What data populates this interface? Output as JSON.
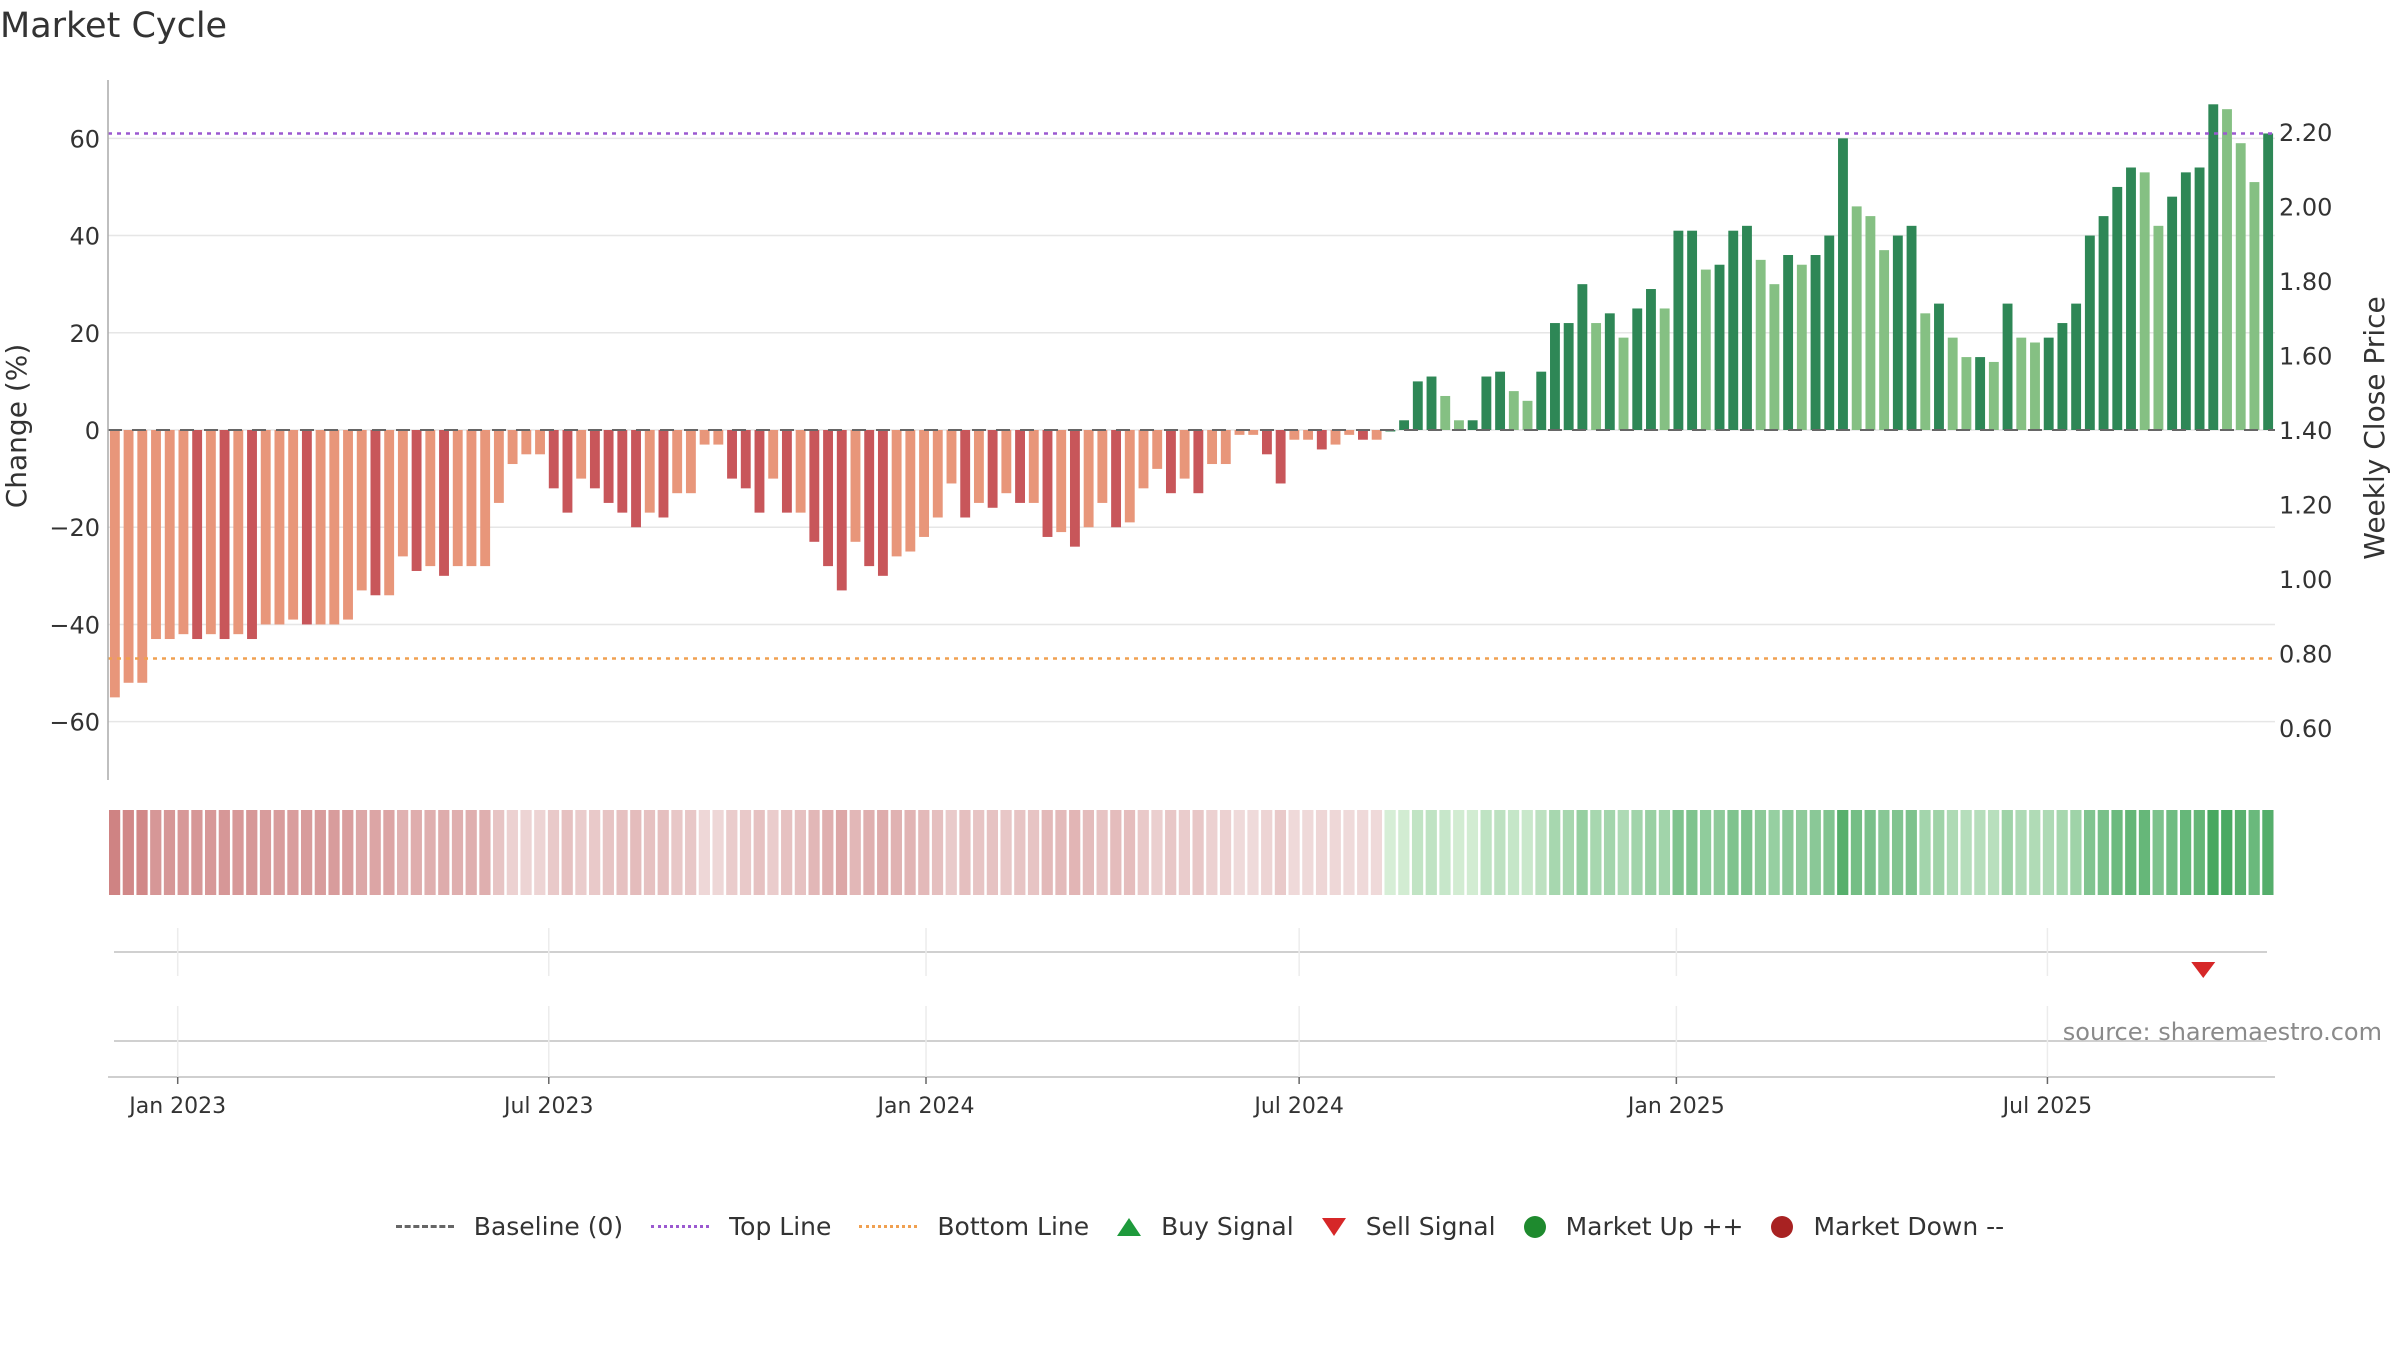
{
  "title": "Market Cycle",
  "source_text": "source: sharemaestro.com",
  "colors": {
    "bar_down_dark": "#c8565a",
    "bar_down_light": "#e8967a",
    "bar_up_dark": "#2e8756",
    "bar_up_light": "#85c083",
    "top_line": "#9b59d0",
    "bottom_line": "#f0a050",
    "buy": "#1e9a3c",
    "sell": "#d62728",
    "market_up": "#1e8a2e",
    "market_down": "#a82222"
  },
  "legend": [
    {
      "key": "baseline",
      "label": "Baseline (0)",
      "color": "#666666"
    },
    {
      "key": "top",
      "label": "Top Line",
      "color": "#9b59d0"
    },
    {
      "key": "bottom",
      "label": "Bottom Line",
      "color": "#f0a050"
    },
    {
      "key": "buy",
      "label": "Buy Signal",
      "color": "#1e9a3c"
    },
    {
      "key": "sell",
      "label": "Sell Signal",
      "color": "#d62728"
    },
    {
      "key": "up",
      "label": "Market Up ++",
      "color": "#1e8a2e"
    },
    {
      "key": "down",
      "label": "Market Down --",
      "color": "#a82222"
    }
  ],
  "chart_data": {
    "type": "bar",
    "ylabel": "Change (%)",
    "y2label": "Weekly Close Price",
    "ylim": [
      -72,
      72
    ],
    "yticks": [
      60,
      40,
      20,
      0,
      -20,
      -40,
      -60
    ],
    "ytick_labels": [
      "60",
      "40",
      "20",
      "0",
      "−20",
      "−40",
      "−60"
    ],
    "y2lim": [
      0.46,
      2.34
    ],
    "y2ticks": [
      2.2,
      2.0,
      1.8,
      1.6,
      1.4,
      1.2,
      1.0,
      0.8,
      0.6
    ],
    "y2tick_labels": [
      "2.20",
      "2.00",
      "1.80",
      "1.60",
      "1.40",
      "1.20",
      "1.00",
      "0.80",
      "0.60"
    ],
    "top_line": 61,
    "bottom_line": -47,
    "x_start": "2022-11-28",
    "x_end": "2025-10-20",
    "xticks": [
      {
        "date": "2023-01-01",
        "label": "Jan 2023"
      },
      {
        "date": "2023-07-01",
        "label": "Jul 2023"
      },
      {
        "date": "2024-01-01",
        "label": "Jan 2024"
      },
      {
        "date": "2024-07-01",
        "label": "Jul 2024"
      },
      {
        "date": "2025-01-01",
        "label": "Jan 2025"
      },
      {
        "date": "2025-07-01",
        "label": "Jul 2025"
      }
    ],
    "first_week": "2022-11-28",
    "values": [
      -55,
      -52,
      -52,
      -43,
      -43,
      -42,
      -43,
      -42,
      -43,
      -42,
      -43,
      -40,
      -40,
      -39,
      -40,
      -40,
      -40,
      -39,
      -33,
      -34,
      -34,
      -26,
      -29,
      -28,
      -30,
      -28,
      -28,
      -28,
      -15,
      -7,
      -5,
      -5,
      -12,
      -17,
      -10,
      -12,
      -15,
      -17,
      -20,
      -17,
      -18,
      -13,
      -13,
      -3,
      -3,
      -10,
      -12,
      -17,
      -10,
      -17,
      -17,
      -23,
      -28,
      -33,
      -23,
      -28,
      -30,
      -26,
      -25,
      -22,
      -18,
      -11,
      -18,
      -15,
      -16,
      -13,
      -15,
      -15,
      -22,
      -21,
      -24,
      -20,
      -15,
      -20,
      -19,
      -12,
      -8,
      -13,
      -10,
      -13,
      -7,
      -7,
      -1,
      -1,
      -5,
      -11,
      -2,
      -2,
      -4,
      -3,
      -1,
      -2,
      -2,
      0,
      2,
      10,
      11,
      7,
      2,
      2,
      11,
      12,
      8,
      6,
      12,
      22,
      22,
      30,
      22,
      24,
      19,
      25,
      29,
      25,
      41,
      41,
      33,
      34,
      41,
      42,
      35,
      30,
      36,
      34,
      36,
      40,
      60,
      46,
      44,
      37,
      40,
      42,
      24,
      26,
      19,
      15,
      15,
      14,
      26,
      19,
      18,
      19,
      22,
      26,
      40,
      44,
      50,
      54,
      53,
      42,
      48,
      53,
      54,
      67,
      66,
      59,
      51,
      61
    ],
    "signals": [
      {
        "type": "sell",
        "date": "2025-09-15"
      }
    ]
  }
}
